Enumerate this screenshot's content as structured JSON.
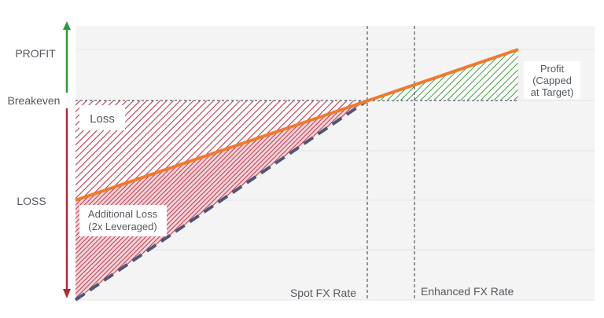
{
  "y_labels": {
    "profit": "PROFIT",
    "breakeven": "Breakeven",
    "loss": "LOSS"
  },
  "x_labels": {
    "spot": "Spot FX Rate",
    "enhanced": "Enhanced FX Rate"
  },
  "regions": {
    "loss": "Loss",
    "additional_loss_line1": "Additional Loss",
    "additional_loss_line2": "(2x Leveraged)",
    "profit_line1": "Profit",
    "profit_line2": "(Capped",
    "profit_line3": "at Target)"
  },
  "colors": {
    "profit_arrow": "#2e9a3a",
    "loss_arrow": "#b02a3a",
    "payoff_line": "#ee7a30",
    "leveraged_line": "#4f5677",
    "loss_hatch": "#c0394e",
    "profit_hatch": "#3e9a3a",
    "panel_bg": "#f4f4f4"
  }
}
